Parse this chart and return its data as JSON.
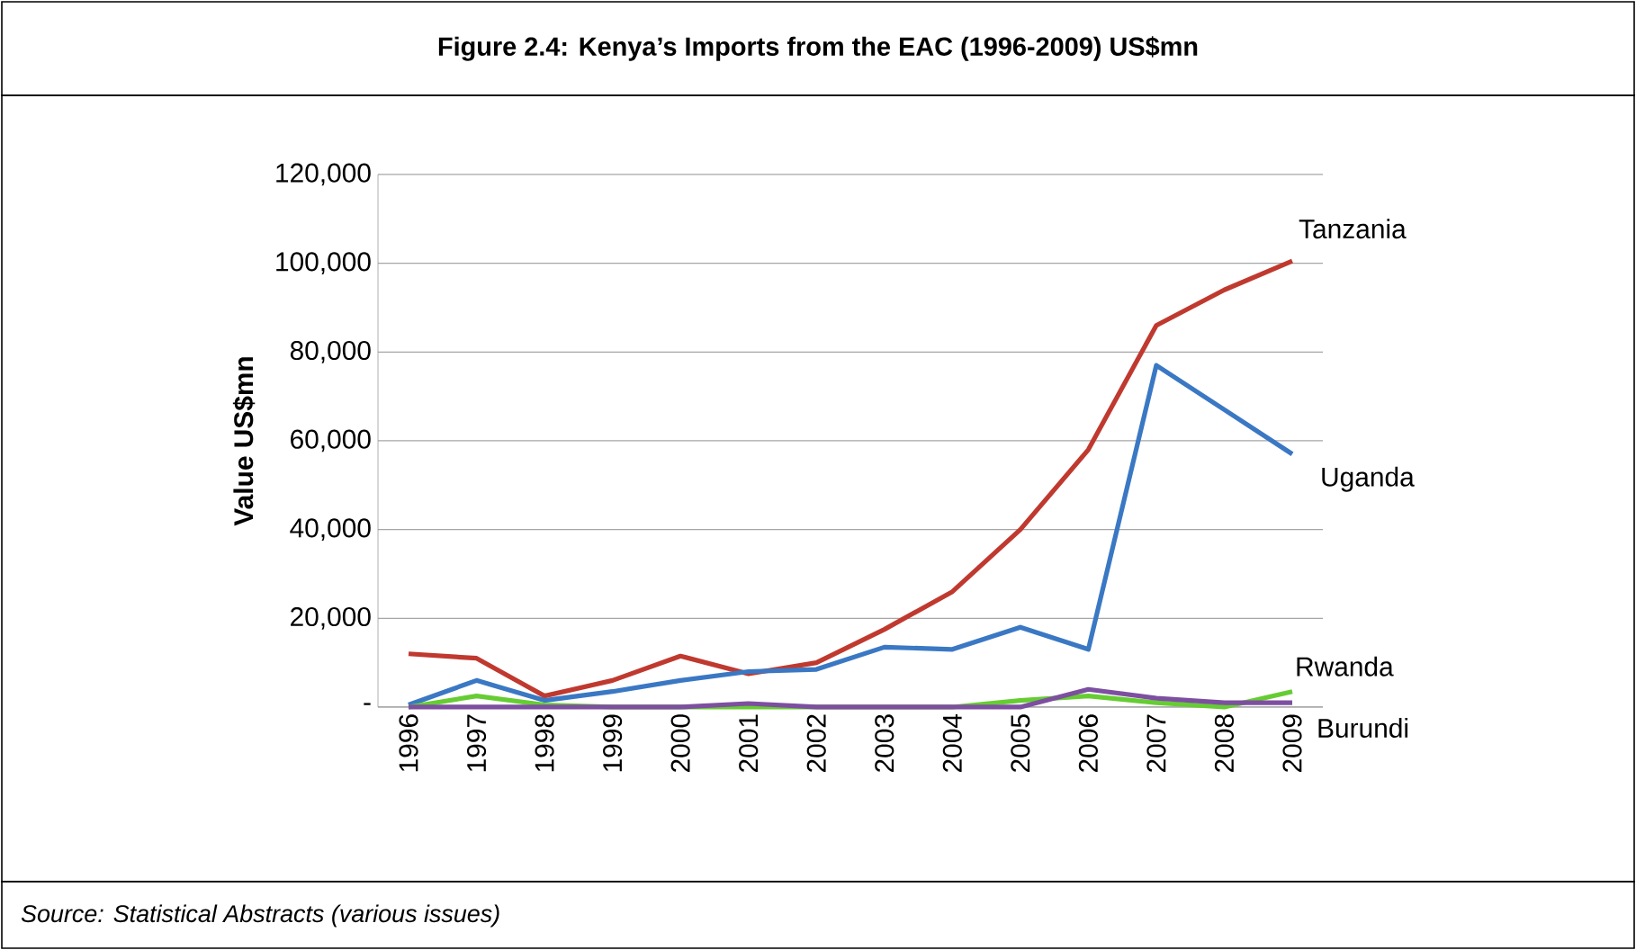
{
  "chart_data": {
    "type": "line",
    "title": "Figure 2.4: Kenya’s Imports from the EAC (1996-2009) US$mn",
    "ylabel": "Value US$mn",
    "annotations": [
      "Source: Statistical Abstracts (various issues)"
    ],
    "categories": [
      "1996",
      "1997",
      "1998",
      "1999",
      "2000",
      "2001",
      "2002",
      "2003",
      "2004",
      "2005",
      "2006",
      "2007",
      "2008",
      "2009"
    ],
    "series": [
      {
        "name": "Tanzania",
        "color": "#c0392f",
        "values": [
          12000,
          11000,
          2500,
          6000,
          11500,
          7500,
          10000,
          17500,
          26000,
          40000,
          58000,
          86000,
          94000,
          100500
        ]
      },
      {
        "name": "Uganda",
        "color": "#3a78c4",
        "values": [
          500,
          6000,
          1500,
          3500,
          6000,
          8000,
          8500,
          13500,
          13000,
          18000,
          13000,
          77000,
          67000,
          57000
        ]
      },
      {
        "name": "Rwanda",
        "color": "#66cc33",
        "values": [
          0,
          2500,
          500,
          0,
          0,
          0,
          0,
          0,
          0,
          1500,
          2500,
          1000,
          0,
          3500
        ]
      },
      {
        "name": "Burundi",
        "color": "#7d4fa0",
        "values": [
          0,
          0,
          0,
          0,
          0,
          800,
          0,
          0,
          0,
          0,
          4000,
          2000,
          1000,
          1000
        ]
      }
    ],
    "ylim": [
      0,
      120000
    ],
    "yticks": [
      {
        "value": 0,
        "label": "-"
      },
      {
        "value": 20000,
        "label": "20,000"
      },
      {
        "value": 40000,
        "label": "40,000"
      },
      {
        "value": 60000,
        "label": "60,000"
      },
      {
        "value": 80000,
        "label": "80,000"
      },
      {
        "value": 100000,
        "label": "100,000"
      },
      {
        "value": 120000,
        "label": "120,000"
      }
    ],
    "grid": "y",
    "marker": "none",
    "line_style": "solid"
  }
}
